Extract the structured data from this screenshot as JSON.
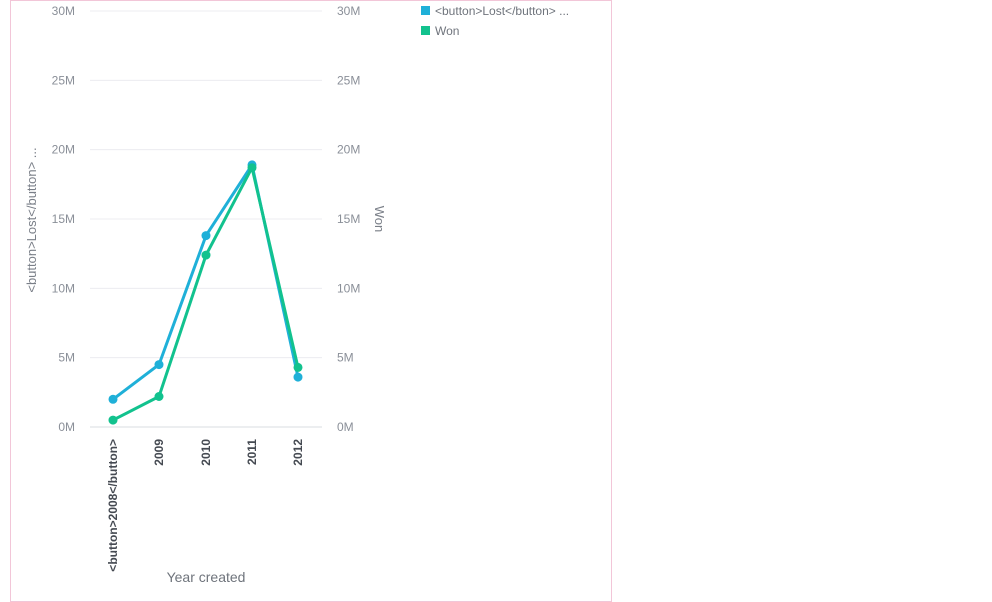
{
  "chart_data": {
    "type": "line",
    "categories": [
      "<button>2008</button>",
      "2009",
      "2010",
      "2011",
      "2012"
    ],
    "series": [
      {
        "name": "<button>Lost</button> ...",
        "color": "#1fb0d8",
        "values": [
          2.0,
          4.5,
          13.8,
          18.9,
          3.6
        ]
      },
      {
        "name": "Won",
        "color": "#12c28e",
        "values": [
          0.5,
          2.2,
          12.4,
          18.7,
          4.3
        ]
      }
    ],
    "xlabel": "Year created",
    "ylabel_left": "<button>Lost</button> ...",
    "ylabel_right": "Won",
    "ylim": [
      0,
      30
    ],
    "yticks": [
      "0M",
      "5M",
      "10M",
      "15M",
      "20M",
      "25M",
      "30M"
    ],
    "legend_position": "top-right",
    "grid": true
  }
}
